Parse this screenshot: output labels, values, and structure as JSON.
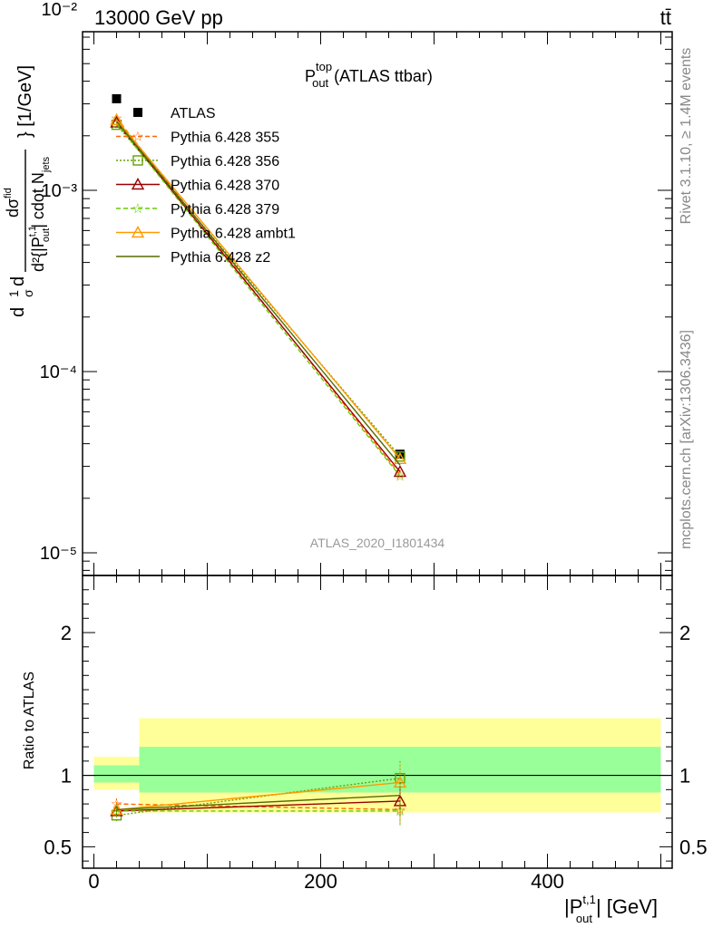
{
  "header": {
    "beam_label": "13000 GeV pp",
    "process_label": "tt̄",
    "analysis_id": "ATLAS_2020_I1801434",
    "rivet_label": "Rivet 3.1.10, ≥ 1.4M events",
    "mcplots_label": "mcplots.cern.ch [arXiv:1306.3436]"
  },
  "colors": {
    "data": "#000000",
    "band_inner": "#99ff99",
    "band_outer": "#ffff99"
  },
  "chart_data": [
    {
      "type": "line",
      "panel": "main",
      "title": "P_out^top (ATLAS ttbar)",
      "title_main": "P",
      "title_sup": "top",
      "title_sub": "out",
      "title_rest": "(ATLAS ttbar)",
      "ylabel": "d²σ/d{|P_out^t,1| cdot N_jets} [1/GeV]",
      "ylabel_parts": {
        "lead": "d²{|P",
        "sup": "t,1",
        "sub": "out",
        "mid": "| cdot N",
        "sub2": "jets",
        "tail": "} [1/GeV]",
        "frac_top": "dσ",
        "frac_top_sup": "fid",
        "frac_left": "d",
        "frac_left2": "1",
        "frac_left3": "σ"
      },
      "yscale": "log",
      "ylim": [
        7.5e-06,
        0.0075
      ],
      "xlim": [
        -10,
        510
      ],
      "y_tick_labels": [
        "10⁻²",
        "10⁻³",
        "10⁻⁴",
        "10⁻⁵"
      ],
      "y_ticks": [
        0.01,
        0.001,
        0.0001,
        1e-05
      ],
      "legend_placement": "top-left",
      "x": [
        20,
        270
      ],
      "series": [
        {
          "name": "ATLAS",
          "color": "#000000",
          "marker": "square",
          "dash": "",
          "values": [
            0.0032,
            3.5e-05
          ]
        },
        {
          "name": "Pythia 6.428 355",
          "color": "#ff6600",
          "marker": "star",
          "dash": "5,3",
          "values": [
            0.0025,
            2.7e-05
          ]
        },
        {
          "name": "Pythia 6.428 356",
          "color": "#66a000",
          "marker": "square-open",
          "dash": "2,2",
          "values": [
            0.0023,
            3.4e-05
          ]
        },
        {
          "name": "Pythia 6.428 370",
          "color": "#990000",
          "marker": "triangle-open",
          "dash": "",
          "values": [
            0.00237,
            2.8e-05
          ]
        },
        {
          "name": "Pythia 6.428 379",
          "color": "#66cc00",
          "marker": "star",
          "dash": "5,3",
          "values": [
            0.00235,
            2.65e-05
          ]
        },
        {
          "name": "Pythia 6.428 ambt1",
          "color": "#ff9900",
          "marker": "triangle-open",
          "dash": "",
          "values": [
            0.00245,
            3.3e-05
          ]
        },
        {
          "name": "Pythia 6.428 z2",
          "color": "#556b00",
          "marker": "none",
          "dash": "",
          "values": [
            0.0024,
            3.05e-05
          ]
        }
      ]
    },
    {
      "type": "line",
      "panel": "ratio",
      "ylabel": "Ratio to ATLAS",
      "xlabel": "|P_out^t,1| [GeV]",
      "xlabel_parts": {
        "lead": "|P",
        "sup": "t,1",
        "sub": "out",
        "tail": "| [GeV]"
      },
      "ylim": [
        0.35,
        2.4
      ],
      "xlim": [
        -10,
        510
      ],
      "y_tick_labels": [
        "0.5",
        "1",
        "2"
      ],
      "y_ticks": [
        0.5,
        1,
        2
      ],
      "x_tick_labels": [
        "0",
        "200",
        "400"
      ],
      "x_ticks": [
        0,
        200,
        400
      ],
      "bands": [
        {
          "x0": 0,
          "x1": 40,
          "inner": [
            0.95,
            1.07
          ],
          "outer": [
            0.9,
            1.13
          ]
        },
        {
          "x0": 40,
          "x1": 500,
          "inner": [
            0.88,
            1.2
          ],
          "outer": [
            0.74,
            1.4
          ]
        }
      ],
      "x": [
        20,
        270
      ],
      "series": [
        {
          "name": "Pythia 6.428 355",
          "values": [
            0.8,
            0.76
          ],
          "err": [
            0.05,
            0.1
          ]
        },
        {
          "name": "Pythia 6.428 356",
          "values": [
            0.72,
            0.98
          ],
          "err": [
            0.04,
            0.12
          ]
        },
        {
          "name": "Pythia 6.428 370",
          "values": [
            0.75,
            0.82
          ],
          "err": [
            0.04,
            0.1
          ]
        },
        {
          "name": "Pythia 6.428 379",
          "values": [
            0.75,
            0.75
          ],
          "err": [
            0.04,
            0.1
          ]
        },
        {
          "name": "Pythia 6.428 ambt1",
          "values": [
            0.76,
            0.95
          ],
          "err": [
            0.04,
            0.12
          ]
        },
        {
          "name": "Pythia 6.428 z2",
          "values": [
            0.76,
            0.86
          ],
          "err": [
            0.04,
            0.1
          ]
        }
      ]
    }
  ]
}
